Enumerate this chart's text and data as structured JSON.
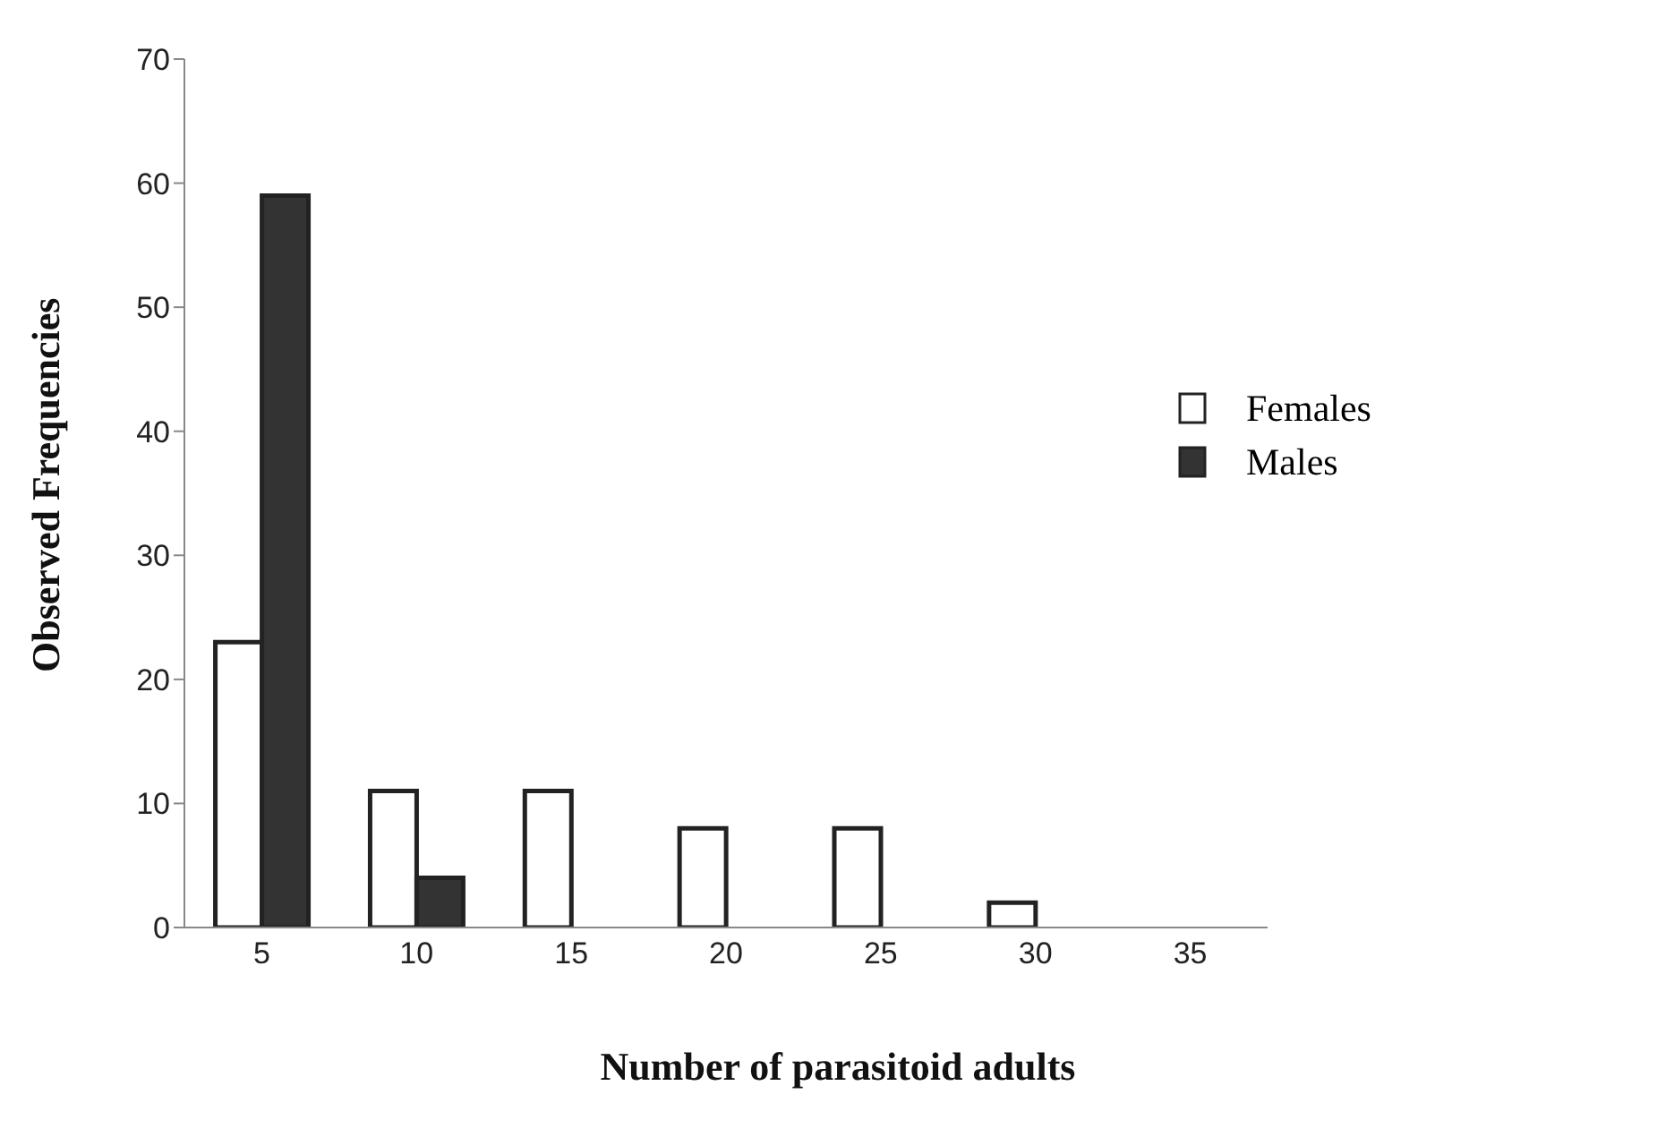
{
  "chart_data": {
    "type": "bar",
    "xlabel": "Number of parasitoid adults",
    "ylabel": "Observed Frequencies",
    "categories": [
      "5",
      "10",
      "15",
      "20",
      "25",
      "30",
      "35"
    ],
    "series": [
      {
        "name": "Females",
        "color": "#ffffff",
        "values": [
          23,
          11,
          11,
          8,
          8,
          2,
          0
        ]
      },
      {
        "name": "Males",
        "color": "#333333",
        "values": [
          59,
          4,
          0,
          0,
          0,
          0,
          0
        ]
      }
    ],
    "ylim": [
      0,
      70
    ],
    "yticks": [
      0,
      10,
      20,
      30,
      40,
      50,
      60,
      70
    ],
    "grid": false,
    "legend": "right"
  }
}
